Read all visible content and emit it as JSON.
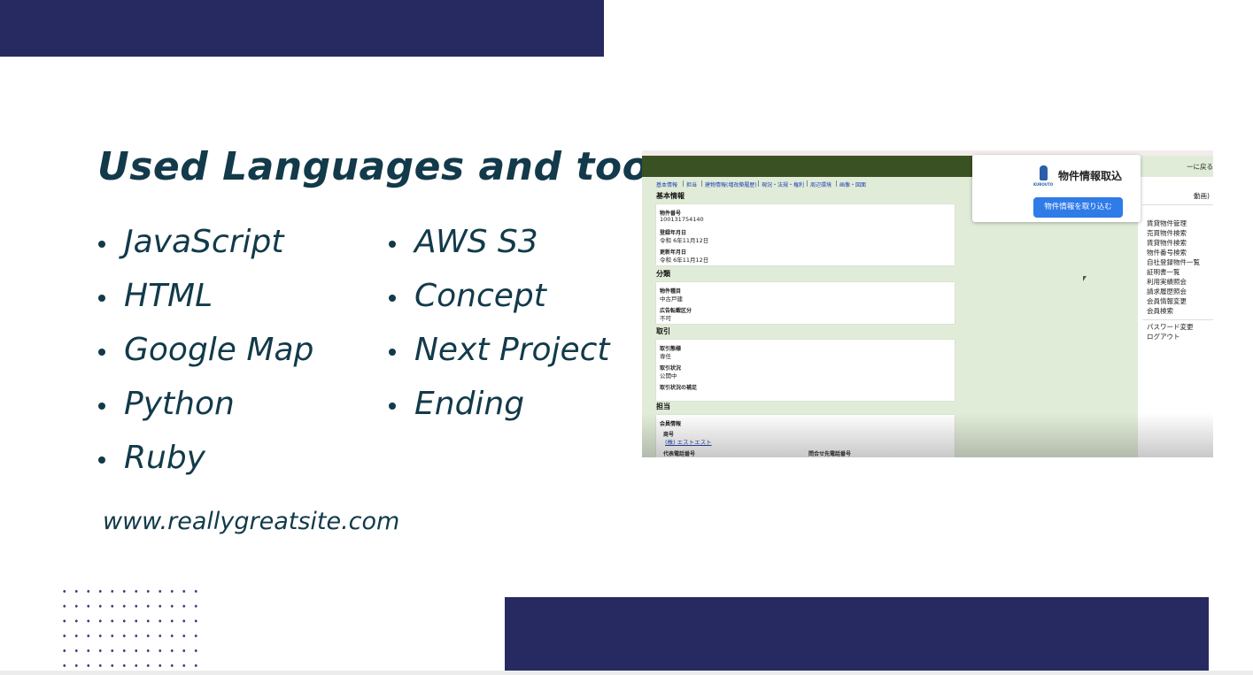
{
  "slide": {
    "title": "Used Languages and tools",
    "languages_left": [
      "JavaScript",
      "HTML",
      "Google Map",
      "Python",
      "Ruby"
    ],
    "languages_right": [
      "AWS S3",
      "Concept",
      "Next Project",
      "Ending"
    ],
    "website": "www.reallygreatsite.com"
  },
  "screenshot": {
    "tabs": [
      "基本情報",
      "担当",
      "建物情報(増改築履歴)",
      "現況・法規・権利",
      "周辺環境",
      "画像・図面"
    ],
    "sections": [
      {
        "heading": "基本情報",
        "fields": [
          {
            "label": "物件番号",
            "value": "100131754140"
          },
          {
            "label": "登録年月日",
            "value": "令和 6年11月12日"
          },
          {
            "label": "更新年月日",
            "value": "令和 6年11月12日"
          }
        ]
      },
      {
        "heading": "分類",
        "fields": [
          {
            "label": "物件種目",
            "value": "中古戸建"
          },
          {
            "label": "広告転載区分",
            "value": "不可"
          }
        ]
      },
      {
        "heading": "取引",
        "fields": [
          {
            "label": "取引態様",
            "value": "専任"
          },
          {
            "label": "取引状況",
            "value": "公開中"
          },
          {
            "label": "取引状況の補足"
          }
        ]
      }
    ],
    "contact": {
      "heading": "担当",
      "subheading": "会員情報",
      "company_label": "商号",
      "company": "(株) エストエスト",
      "phones": [
        "代表電話番号",
        "問合せ先電話番号"
      ]
    },
    "popup": {
      "logo": "KUROUTO",
      "title": "物件情報取込",
      "button": "物件情報を取り込む"
    },
    "sidebar": {
      "top": [
        "ーに戻る",
        "動画)"
      ],
      "menu": [
        "賃貸物件管理",
        "売買物件検索",
        "賃貸物件検索",
        "物件番号検索",
        "自社登録物件一覧",
        "証明書一覧",
        "利用実績照会",
        "請求履歴照会",
        "会員情報変更",
        "会員検索"
      ],
      "account": [
        "パスワード変更",
        "ログアウト"
      ]
    }
  }
}
